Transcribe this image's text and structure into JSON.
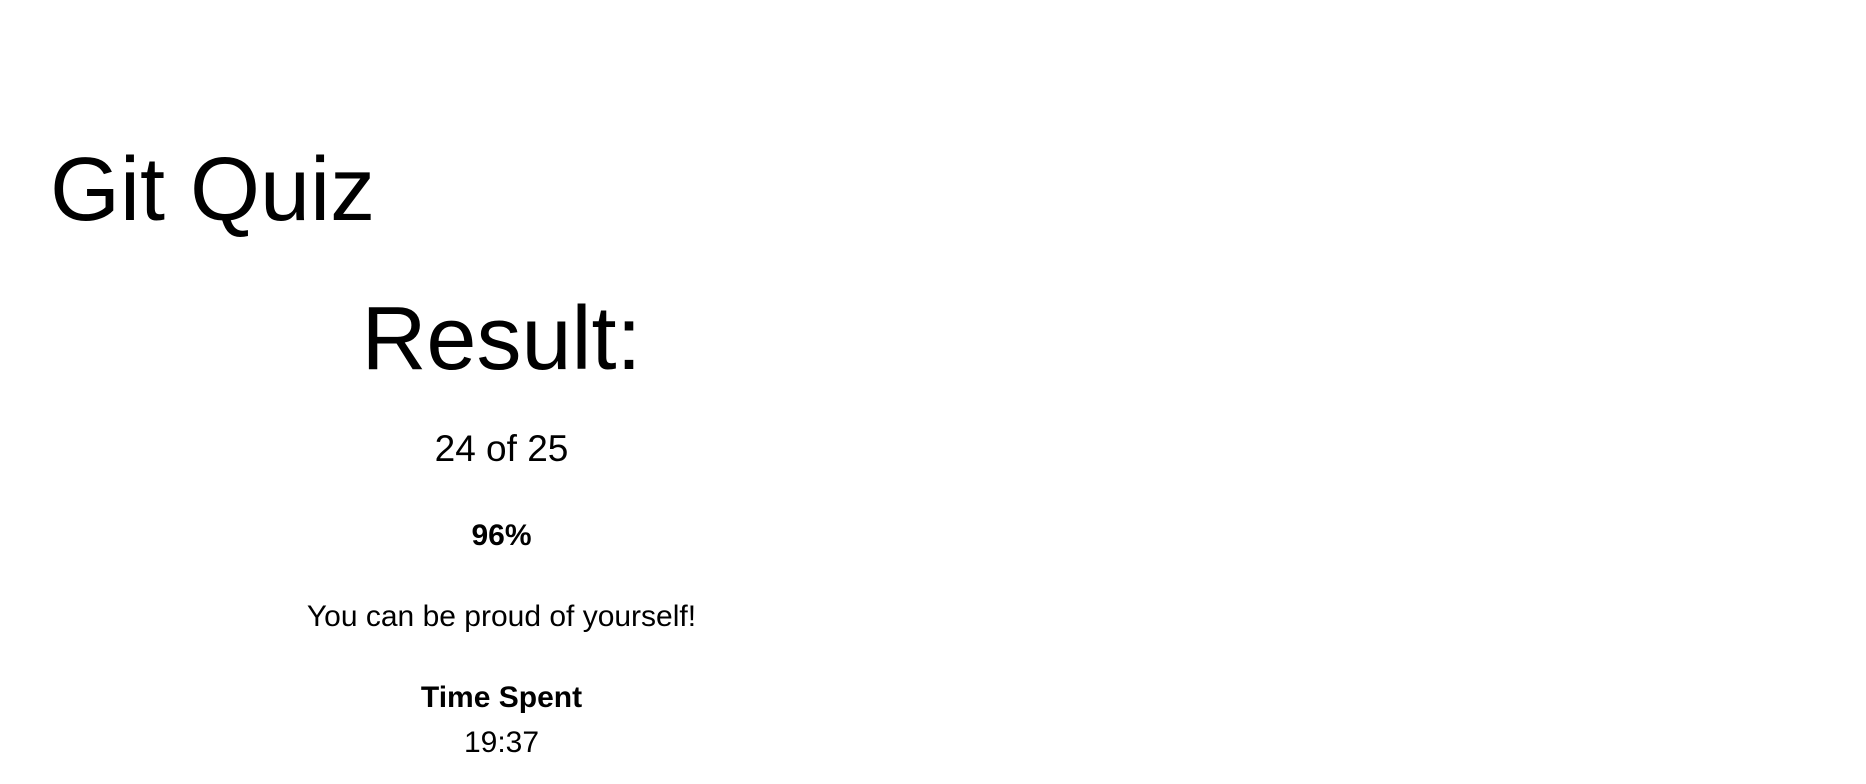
{
  "header": {
    "title": "Git Quiz"
  },
  "result": {
    "heading": "Result:",
    "score_text": "24 of 25",
    "correct": 24,
    "total": 25,
    "percent_text": "96%",
    "message": "You can be proud of yourself!",
    "time_label": "Time Spent",
    "time_value": "19:37"
  }
}
